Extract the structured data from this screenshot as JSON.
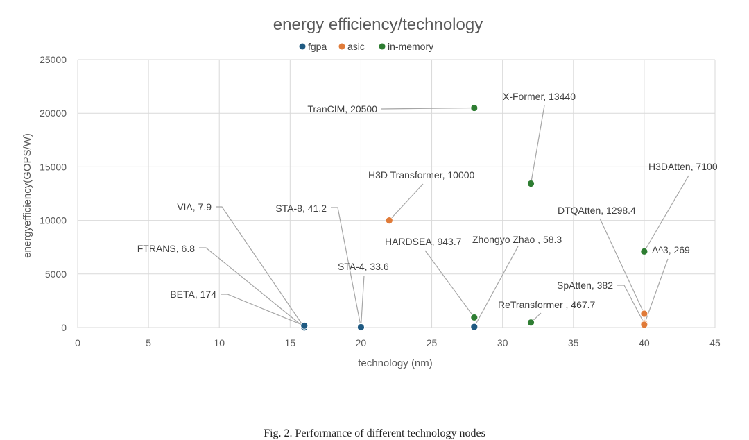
{
  "chart_data": {
    "type": "scatter",
    "title": "energy efficiency/technology",
    "xlabel": "technology (nm)",
    "ylabel": "energyefficiency(GOPS/W)",
    "xlim": [
      0,
      45
    ],
    "ylim": [
      0,
      25000
    ],
    "x_ticks": [
      "0",
      "5",
      "10",
      "15",
      "20",
      "25",
      "30",
      "35",
      "40",
      "45"
    ],
    "y_ticks": [
      "0",
      "5000",
      "10000",
      "15000",
      "20000",
      "25000"
    ],
    "legend_position": "top",
    "grid": true,
    "series": [
      {
        "name": "fgpa",
        "color": "#1f5a82",
        "points": [
          {
            "label": "VIA, 7.9",
            "x": 16,
            "y": 7.9
          },
          {
            "label": "FTRANS, 6.8",
            "x": 16,
            "y": 6.8
          },
          {
            "label": "BETA, 174",
            "x": 16,
            "y": 174
          },
          {
            "label": "STA-8, 41.2",
            "x": 20,
            "y": 41.2
          },
          {
            "label": "STA-4, 33.6",
            "x": 20,
            "y": 33.6
          },
          {
            "label": "Zhongyo Zhao , 58.3",
            "x": 28,
            "y": 58.3
          }
        ]
      },
      {
        "name": "asic",
        "color": "#e07b39",
        "points": [
          {
            "label": "H3D Transformer, 10000",
            "x": 22,
            "y": 10000
          },
          {
            "label": "DTQAtten, 1298.4",
            "x": 40,
            "y": 1298.4
          },
          {
            "label": "SpAtten, 382",
            "x": 40,
            "y": 382
          },
          {
            "label": "A^3, 269",
            "x": 40,
            "y": 269
          }
        ]
      },
      {
        "name": "in-memory",
        "color": "#2e7d32",
        "points": [
          {
            "label": "TranCIM, 20500",
            "x": 28,
            "y": 20500
          },
          {
            "label": "X-Former, 13440",
            "x": 32,
            "y": 13440
          },
          {
            "label": "HARDSEA, 943.7",
            "x": 28,
            "y": 943.7
          },
          {
            "label": "ReTransformer , 467.7",
            "x": 32,
            "y": 467.7
          },
          {
            "label": "H3DAtten, 7100",
            "x": 40,
            "y": 7100
          }
        ]
      }
    ]
  },
  "caption": "Fig. 2. Performance of different technology nodes"
}
